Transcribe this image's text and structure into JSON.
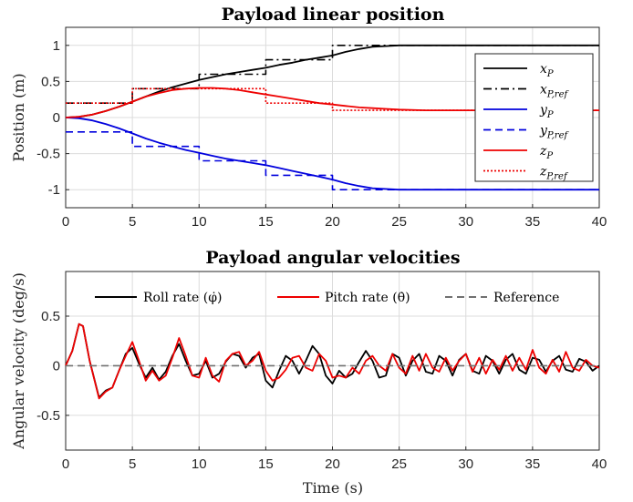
{
  "chart_data": [
    {
      "type": "line",
      "title": "Payload linear position",
      "xlabel": "",
      "ylabel": "Position (m)",
      "xlim": [
        0,
        40
      ],
      "ylim": [
        -1.25,
        1.25
      ],
      "xticks": [
        "0",
        "5",
        "10",
        "15",
        "20",
        "25",
        "30",
        "35",
        "40"
      ],
      "yticks": [
        "1",
        "0.5",
        "0",
        "-0.5",
        "-1"
      ],
      "grid": true,
      "legend_position": "right",
      "series": [
        {
          "name": "x_P",
          "color": "#000000",
          "style": "solid",
          "x": [
            0,
            1,
            2,
            3,
            4,
            5,
            6,
            7,
            8,
            9,
            10,
            11,
            12,
            13,
            14,
            15,
            16,
            17,
            18,
            19,
            20,
            21,
            22,
            23,
            24,
            25,
            27,
            30,
            33,
            36,
            40
          ],
          "y": [
            0,
            0.01,
            0.04,
            0.09,
            0.15,
            0.22,
            0.29,
            0.36,
            0.42,
            0.47,
            0.52,
            0.56,
            0.6,
            0.63,
            0.66,
            0.69,
            0.73,
            0.76,
            0.8,
            0.83,
            0.86,
            0.91,
            0.95,
            0.98,
            0.99,
            1.0,
            1.0,
            1.0,
            1.0,
            1.0,
            1.0
          ]
        },
        {
          "name": "x_P,ref",
          "color": "#000000",
          "style": "dashdot",
          "x": [
            0,
            5,
            5,
            10,
            10,
            15,
            15,
            20,
            20,
            25,
            25,
            40
          ],
          "y": [
            0.2,
            0.2,
            0.4,
            0.4,
            0.6,
            0.6,
            0.8,
            0.8,
            1.0,
            1.0,
            1.0,
            1.0
          ]
        },
        {
          "name": "y_P",
          "color": "#0000dd",
          "style": "solid",
          "x": [
            0,
            1,
            2,
            3,
            4,
            5,
            6,
            7,
            8,
            9,
            10,
            11,
            12,
            13,
            14,
            15,
            16,
            17,
            18,
            19,
            20,
            21,
            22,
            23,
            24,
            25,
            27,
            30,
            33,
            36,
            40
          ],
          "y": [
            0,
            -0.01,
            -0.04,
            -0.09,
            -0.15,
            -0.22,
            -0.29,
            -0.35,
            -0.4,
            -0.45,
            -0.49,
            -0.53,
            -0.57,
            -0.6,
            -0.63,
            -0.66,
            -0.7,
            -0.74,
            -0.78,
            -0.82,
            -0.86,
            -0.91,
            -0.95,
            -0.98,
            -0.99,
            -1.0,
            -1.0,
            -1.0,
            -1.0,
            -1.0,
            -1.0
          ]
        },
        {
          "name": "y_P,ref",
          "color": "#0000dd",
          "style": "dashed",
          "x": [
            0,
            5,
            5,
            10,
            10,
            15,
            15,
            20,
            20,
            40
          ],
          "y": [
            -0.2,
            -0.2,
            -0.4,
            -0.4,
            -0.6,
            -0.6,
            -0.8,
            -0.8,
            -1.0,
            -1.0
          ]
        },
        {
          "name": "z_P",
          "color": "#ee0000",
          "style": "solid",
          "x": [
            0,
            1,
            2,
            3,
            4,
            5,
            6,
            7,
            8,
            9,
            10,
            11,
            12,
            13,
            14,
            15,
            16,
            17,
            18,
            19,
            20,
            21,
            22,
            23,
            24,
            25,
            27,
            30,
            33,
            36,
            40
          ],
          "y": [
            0,
            0.01,
            0.04,
            0.09,
            0.15,
            0.22,
            0.29,
            0.34,
            0.38,
            0.4,
            0.41,
            0.41,
            0.4,
            0.38,
            0.35,
            0.32,
            0.29,
            0.26,
            0.23,
            0.2,
            0.18,
            0.16,
            0.14,
            0.13,
            0.12,
            0.11,
            0.1,
            0.1,
            0.1,
            0.1,
            0.1
          ]
        },
        {
          "name": "z_P,ref",
          "color": "#ee0000",
          "style": "dotted",
          "x": [
            0,
            5,
            5,
            15,
            15,
            20,
            20,
            40
          ],
          "y": [
            0.2,
            0.2,
            0.4,
            0.4,
            0.2,
            0.2,
            0.1,
            0.1
          ]
        }
      ]
    },
    {
      "type": "line",
      "title": "Payload angular velocities",
      "xlabel": "Time (s)",
      "ylabel": "Angular velocity (deg/s)",
      "xlim": [
        0,
        40
      ],
      "ylim": [
        -0.85,
        0.95
      ],
      "xticks": [
        "0",
        "5",
        "10",
        "15",
        "20",
        "25",
        "30",
        "35",
        "40"
      ],
      "yticks": [
        "0.5",
        "0",
        "-0.5"
      ],
      "grid": true,
      "legend_position": "top",
      "series": [
        {
          "name": "Roll rate (φ̇_P)",
          "color": "#000000",
          "style": "solid",
          "x": [
            0,
            0.5,
            1,
            1.3,
            1.8,
            2.5,
            3,
            3.5,
            4,
            4.5,
            5,
            5.5,
            6,
            6.5,
            7,
            7.5,
            8,
            8.5,
            9,
            9.5,
            10,
            10.5,
            11,
            11.5,
            12,
            12.5,
            13,
            13.5,
            14,
            14.5,
            15,
            15.5,
            16,
            16.5,
            17,
            17.5,
            18,
            18.5,
            19,
            19.5,
            20,
            20.5,
            21,
            21.5,
            22,
            22.5,
            23,
            23.5,
            24,
            24.5,
            25,
            25.5,
            26,
            26.5,
            27,
            27.5,
            28,
            28.5,
            29,
            29.5,
            30,
            30.5,
            31,
            31.5,
            32,
            32.5,
            33,
            33.5,
            34,
            34.5,
            35,
            35.5,
            36,
            36.5,
            37,
            37.5,
            38,
            38.5,
            39,
            39.5,
            40
          ],
          "y": [
            0,
            0.15,
            0.42,
            0.4,
            0.05,
            -0.32,
            -0.25,
            -0.22,
            -0.05,
            0.12,
            0.18,
            0.02,
            -0.12,
            -0.02,
            -0.14,
            -0.06,
            0.1,
            0.22,
            0.05,
            -0.1,
            -0.08,
            0.05,
            -0.12,
            -0.08,
            0.04,
            0.12,
            0.1,
            -0.02,
            0.08,
            0.12,
            -0.15,
            -0.22,
            -0.05,
            0.1,
            0.05,
            -0.08,
            0.05,
            0.2,
            0.12,
            -0.1,
            -0.18,
            -0.05,
            -0.12,
            -0.08,
            0.04,
            0.15,
            0.05,
            -0.12,
            -0.1,
            0.12,
            0.08,
            -0.1,
            0.05,
            0.12,
            -0.06,
            -0.08,
            0.1,
            0.05,
            -0.1,
            0.06,
            0.12,
            -0.05,
            -0.08,
            0.1,
            0.05,
            -0.08,
            0.06,
            0.12,
            -0.04,
            -0.08,
            0.08,
            0.06,
            -0.06,
            0.05,
            0.1,
            -0.04,
            -0.06,
            0.07,
            0.04,
            -0.05,
            0.0
          ]
        },
        {
          "name": "Pitch rate (θ̇_P)",
          "color": "#ee0000",
          "style": "solid",
          "x": [
            0,
            0.5,
            1,
            1.3,
            1.8,
            2.5,
            3,
            3.5,
            4,
            4.5,
            5,
            5.5,
            6,
            6.5,
            7,
            7.5,
            8,
            8.5,
            9,
            9.5,
            10,
            10.5,
            11,
            11.5,
            12,
            12.5,
            13,
            13.5,
            14,
            14.5,
            15,
            15.5,
            16,
            16.5,
            17,
            17.5,
            18,
            18.5,
            19,
            19.5,
            20,
            20.5,
            21,
            21.5,
            22,
            22.5,
            23,
            23.5,
            24,
            24.5,
            25,
            25.5,
            26,
            26.5,
            27,
            27.5,
            28,
            28.5,
            29,
            29.5,
            30,
            30.5,
            31,
            31.5,
            32,
            32.5,
            33,
            33.5,
            34,
            34.5,
            35,
            35.5,
            36,
            36.5,
            37,
            37.5,
            38,
            38.5,
            39,
            39.5,
            40
          ],
          "y": [
            0,
            0.15,
            0.42,
            0.4,
            0.05,
            -0.33,
            -0.26,
            -0.22,
            -0.05,
            0.1,
            0.24,
            0.05,
            -0.15,
            -0.05,
            -0.15,
            -0.1,
            0.08,
            0.28,
            0.1,
            -0.1,
            -0.12,
            0.08,
            -0.1,
            -0.16,
            0.05,
            0.12,
            0.14,
            0.0,
            0.05,
            0.14,
            -0.05,
            -0.15,
            -0.12,
            -0.04,
            0.08,
            0.1,
            -0.02,
            -0.05,
            0.12,
            0.05,
            -0.12,
            -0.1,
            -0.12,
            -0.02,
            -0.08,
            0.05,
            0.1,
            0.0,
            -0.05,
            0.12,
            -0.02,
            -0.08,
            0.1,
            -0.05,
            0.12,
            -0.02,
            -0.06,
            0.08,
            -0.05,
            0.05,
            0.12,
            -0.06,
            0.08,
            -0.08,
            0.06,
            -0.04,
            0.1,
            -0.05,
            0.08,
            -0.04,
            0.16,
            -0.02,
            -0.08,
            0.06,
            -0.06,
            0.14,
            -0.02,
            -0.05,
            0.06,
            0.0,
            -0.02
          ]
        },
        {
          "name": "Reference",
          "color": "#707070",
          "style": "dashed",
          "x": [
            0,
            40
          ],
          "y": [
            0,
            0
          ]
        }
      ]
    }
  ]
}
